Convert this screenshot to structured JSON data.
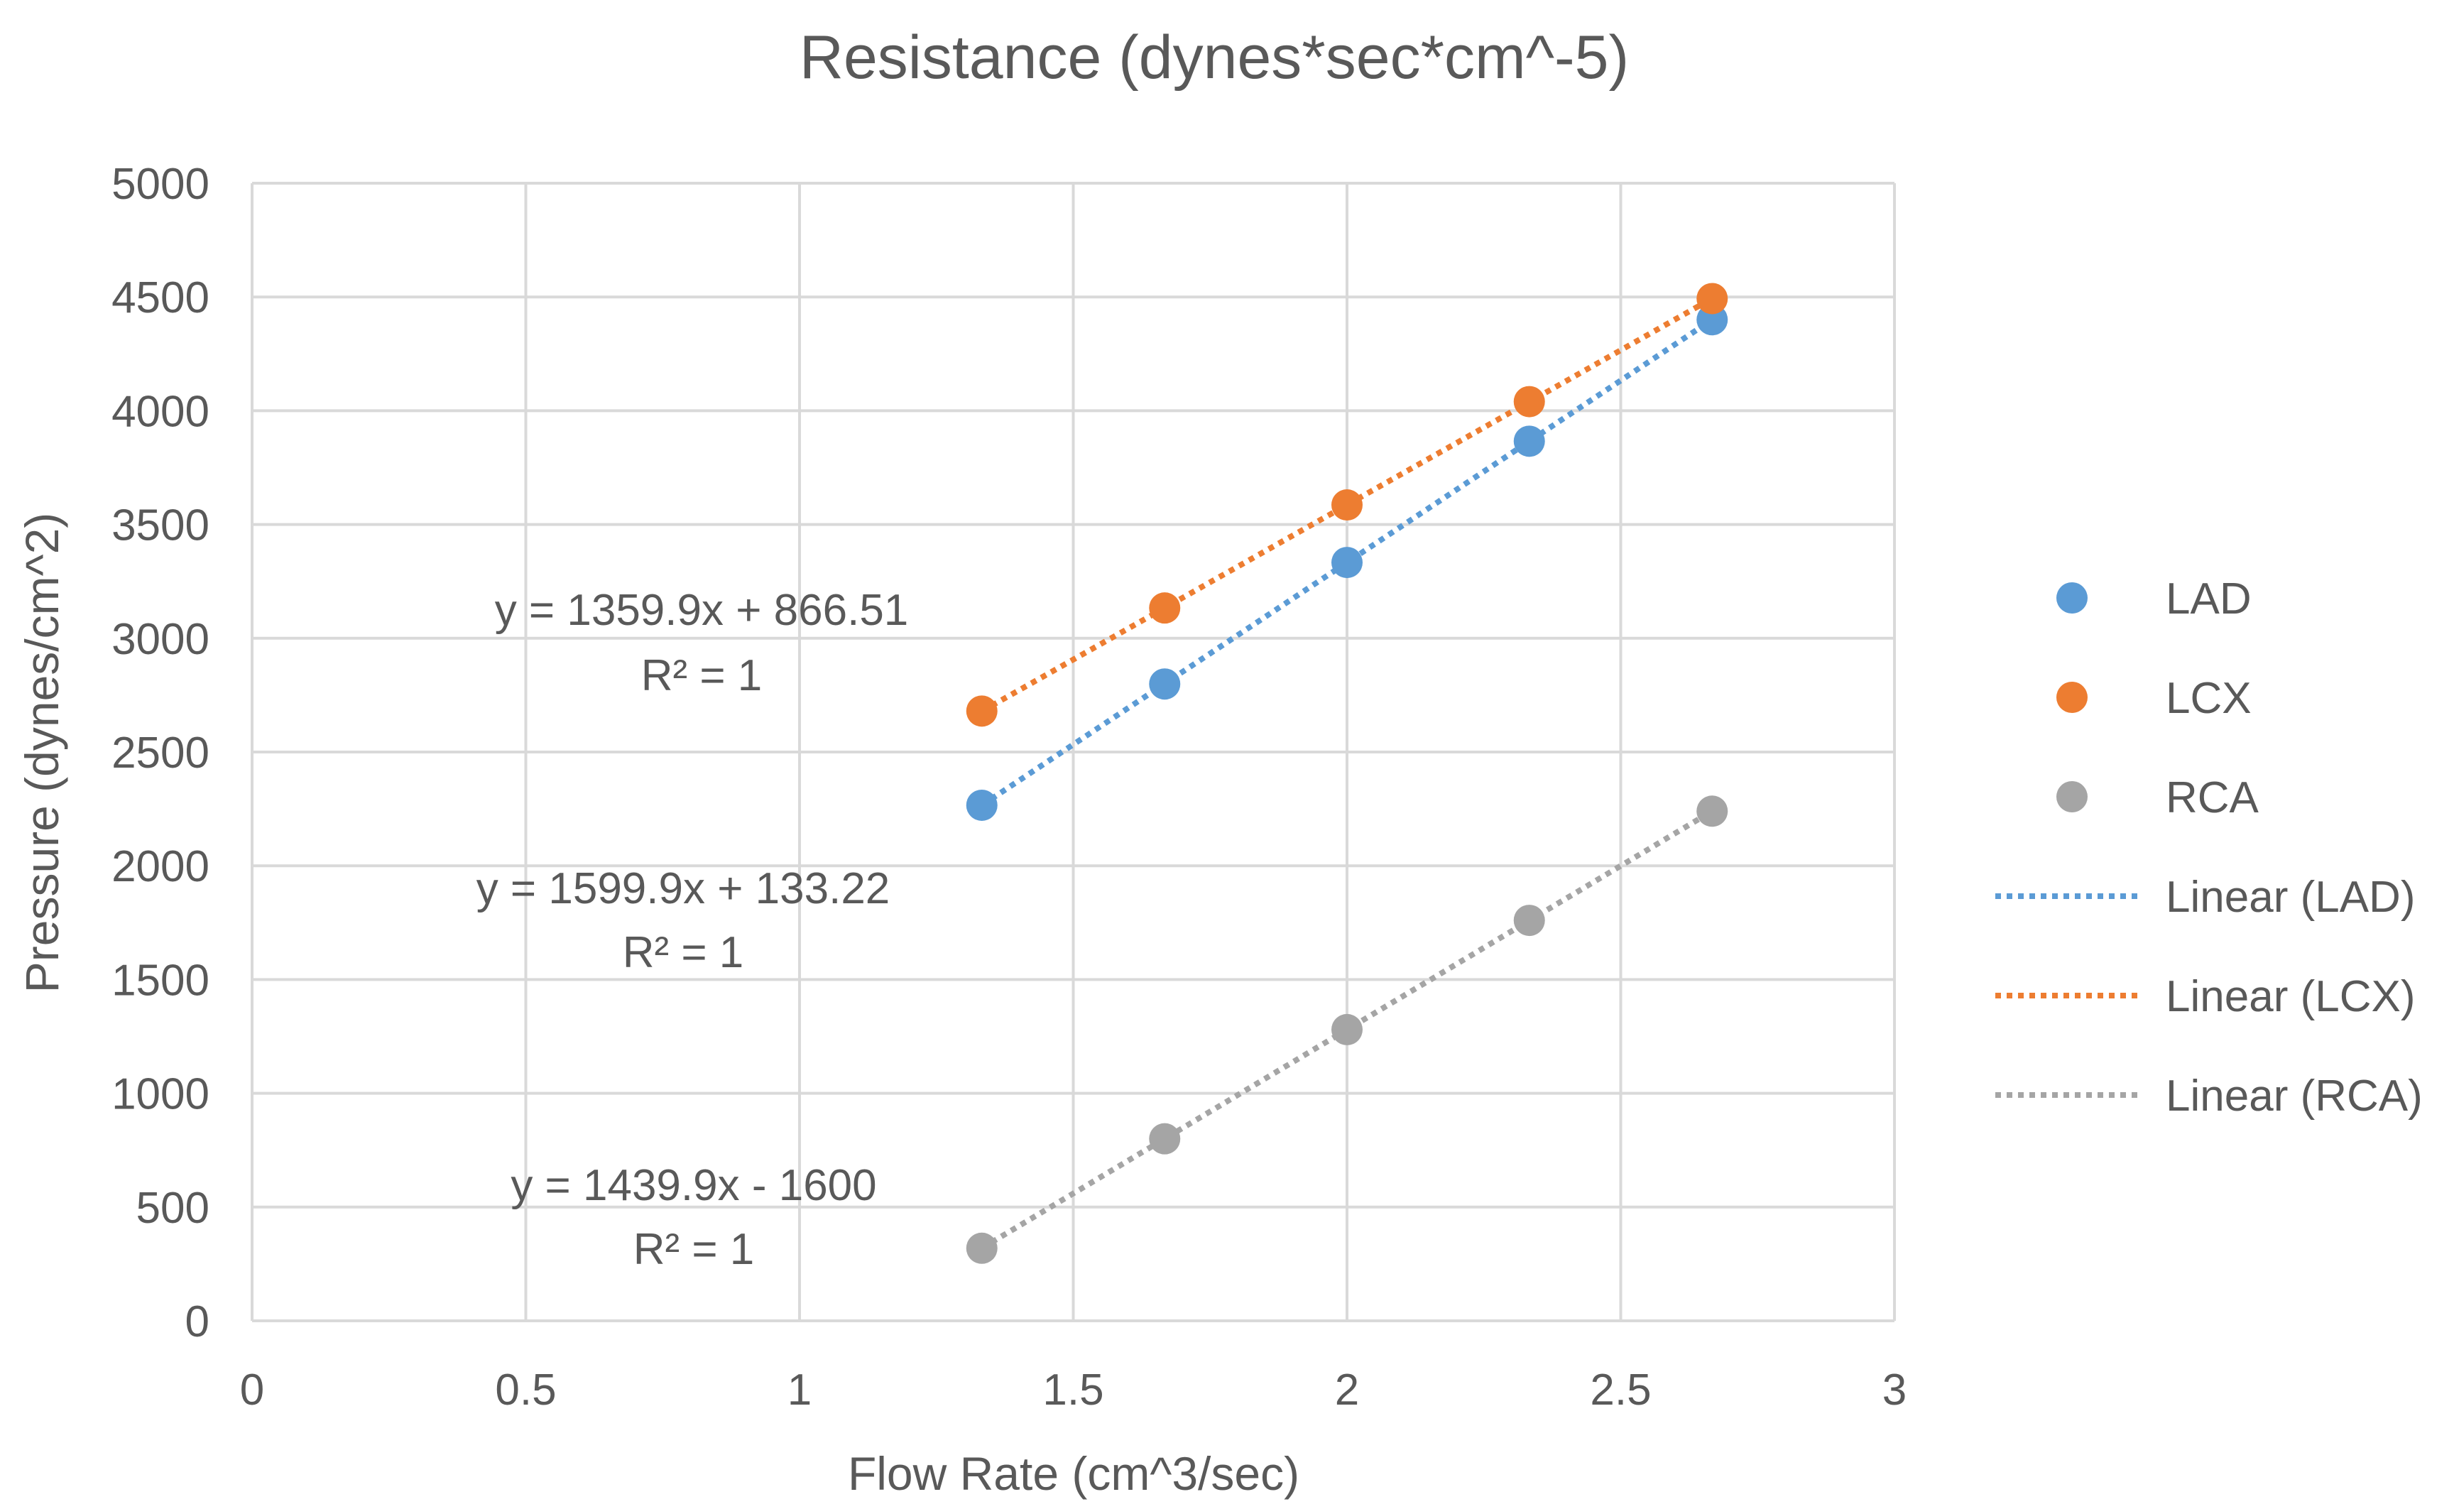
{
  "chart_data": {
    "type": "scatter",
    "title": "Resistance (dynes*sec*cm^-5)",
    "xlabel": "Flow Rate (cm^3/sec)",
    "ylabel": "Pressure (dynes/cm^2)",
    "xlim": [
      0,
      3
    ],
    "ylim": [
      0,
      5000
    ],
    "x_ticks": [
      "0",
      "0.5",
      "1",
      "1.5",
      "2",
      "2.5",
      "3"
    ],
    "x_tick_values": [
      0,
      0.5,
      1,
      1.5,
      2,
      2.5,
      3
    ],
    "y_ticks": [
      "0",
      "500",
      "1000",
      "1500",
      "2000",
      "2500",
      "3000",
      "3500",
      "4000",
      "4500",
      "5000"
    ],
    "y_tick_values": [
      0,
      500,
      1000,
      1500,
      2000,
      2500,
      3000,
      3500,
      4000,
      4500,
      5000
    ],
    "grid": true,
    "legend_position": "right",
    "series": [
      {
        "name": "LAD",
        "trend_name": "Linear (LAD)",
        "color": "#5b9bd5",
        "x": [
          1.333,
          1.667,
          2.0,
          2.333,
          2.667
        ],
        "y": [
          2266,
          2799,
          3333,
          3866,
          4400
        ],
        "equation": "y = 1599.9x + 133.22",
        "r2": "R² = 1",
        "slope": 1599.9,
        "intercept": 133.22
      },
      {
        "name": "LCX",
        "trend_name": "Linear (LCX)",
        "color": "#ed7d31",
        "x": [
          1.333,
          1.667,
          2.0,
          2.333,
          2.667
        ],
        "y": [
          2680,
          3133,
          3586,
          4040,
          4493
        ],
        "equation": "y = 1359.9x + 866.51",
        "r2": "R² = 1",
        "slope": 1359.9,
        "intercept": 866.51
      },
      {
        "name": "RCA",
        "trend_name": "Linear (RCA)",
        "color": "#a5a5a5",
        "x": [
          1.333,
          1.667,
          2.0,
          2.333,
          2.667
        ],
        "y": [
          319,
          800,
          1280,
          1760,
          2240
        ],
        "equation": "y = 1439.9x - 1600",
        "r2": "R² = 1",
        "slope": 1439.9,
        "intercept": -1600
      }
    ]
  }
}
